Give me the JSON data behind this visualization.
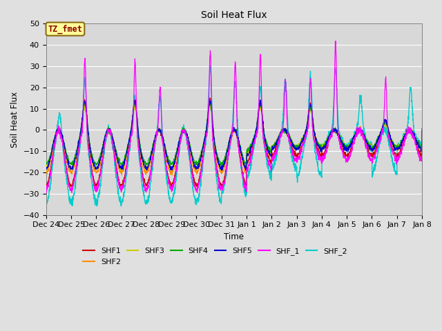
{
  "title": "Soil Heat Flux",
  "xlabel": "Time",
  "ylabel": "Soil Heat Flux",
  "ylim": [
    -40,
    50
  ],
  "annotation_text": "TZ_fmet",
  "annotation_color": "#8B0000",
  "annotation_bg": "#FFFF99",
  "series_colors": {
    "SHF1": "#CC0000",
    "SHF2": "#FF8C00",
    "SHF3": "#CCCC00",
    "SHF4": "#00AA00",
    "SHF5": "#0000CC",
    "SHF_1": "#FF00FF",
    "SHF_2": "#00CCCC"
  },
  "bg_color": "#E0E0E0",
  "plot_bg": "#D8D8D8",
  "x_tick_labels": [
    "Dec 24",
    "Dec 25",
    "Dec 26",
    "Dec 27",
    "Dec 28",
    "Dec 29",
    "Dec 30",
    "Dec 31",
    "Jan 1",
    "Jan 2",
    "Jan 3",
    "Jan 4",
    "Jan 5",
    "Jan 6",
    "Jan 7",
    "Jan 8"
  ],
  "figsize": [
    6.4,
    4.8
  ],
  "dpi": 100
}
